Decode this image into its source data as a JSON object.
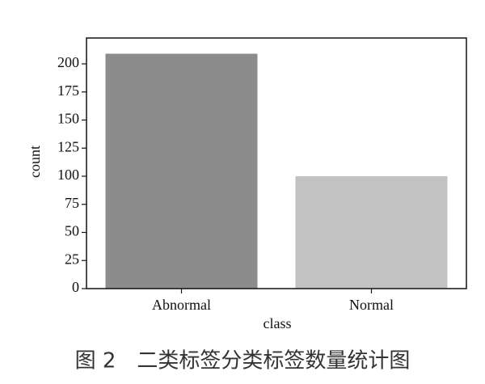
{
  "chart_data": {
    "type": "bar",
    "categories": [
      "Abnormal",
      "Normal"
    ],
    "values": [
      209,
      100
    ],
    "colors": [
      "#8c8c8c",
      "#c1c2c1"
    ],
    "xlabel": "class",
    "ylabel": "count",
    "ylim": [
      0,
      223
    ],
    "yticks": [
      0,
      25,
      50,
      75,
      100,
      125,
      150,
      175,
      200
    ]
  },
  "caption": "图 2　二类标签分类标签数量统计图"
}
